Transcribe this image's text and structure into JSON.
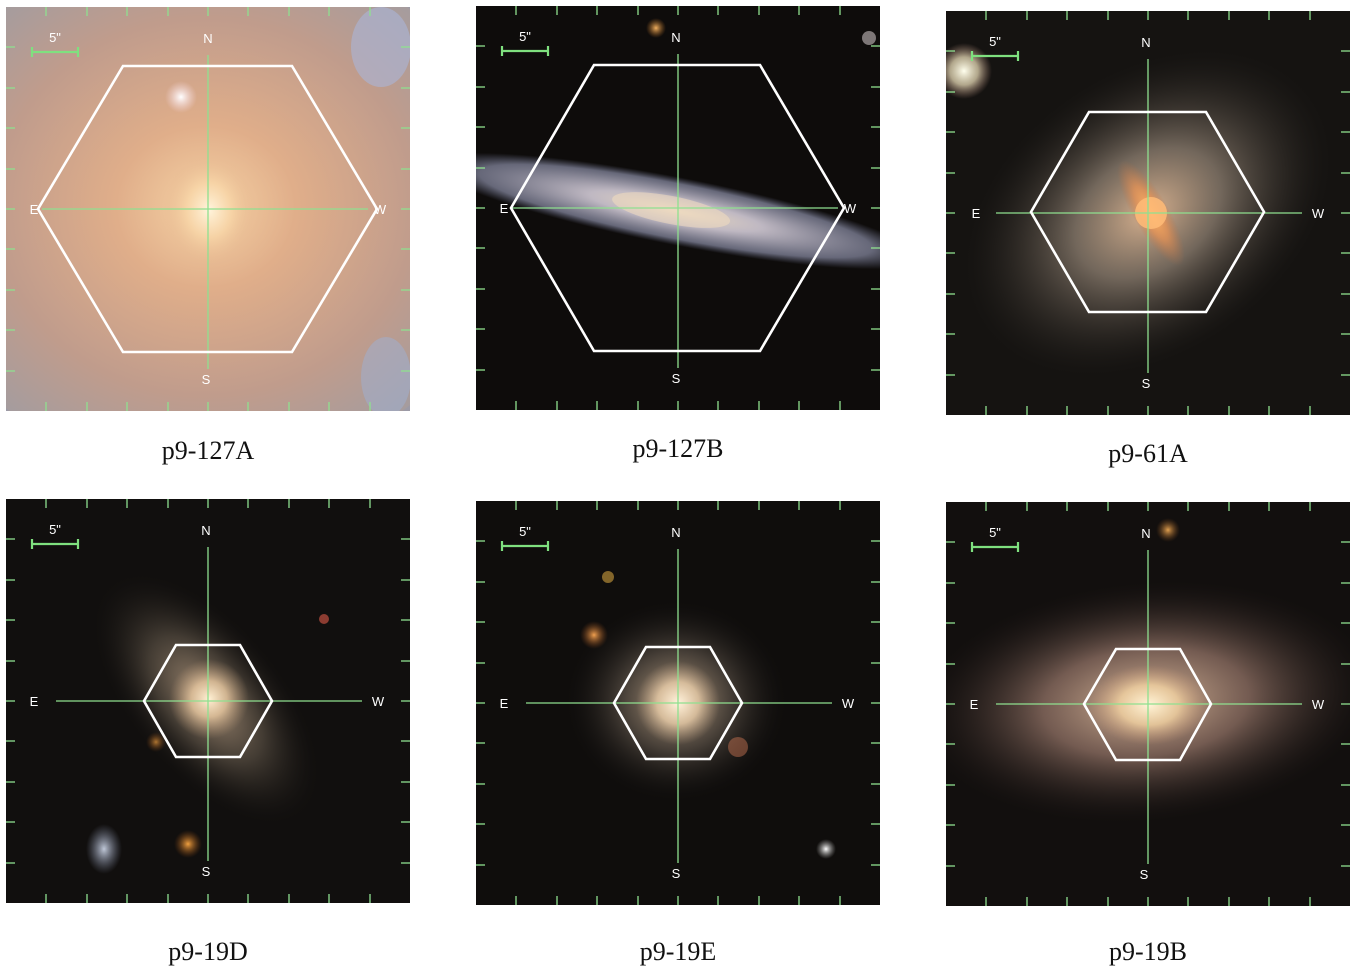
{
  "panels": [
    {
      "label": "p9-127A",
      "scale": "5\"",
      "compass": {
        "n": "N",
        "s": "S",
        "e": "E",
        "w": "W"
      }
    },
    {
      "label": "p9-127B",
      "scale": "5\"",
      "compass": {
        "n": "N",
        "s": "S",
        "e": "E",
        "w": "W"
      }
    },
    {
      "label": "p9-61A",
      "scale": "5\"",
      "compass": {
        "n": "N",
        "s": "S",
        "e": "E",
        "w": "W"
      }
    },
    {
      "label": "p9-19D",
      "scale": "5\"",
      "compass": {
        "n": "N",
        "s": "S",
        "e": "E",
        "w": "W"
      }
    },
    {
      "label": "p9-19E",
      "scale": "5\"",
      "compass": {
        "n": "N",
        "s": "S",
        "e": "E",
        "w": "W"
      }
    },
    {
      "label": "p9-19B",
      "scale": "5\"",
      "compass": {
        "n": "N",
        "s": "S",
        "e": "E",
        "w": "W"
      }
    }
  ],
  "colors": {
    "crosshair": "#8fe08f",
    "hexagon": "#ffffff",
    "scalebar": "#7fe07f",
    "sky": "#0c0b0a"
  }
}
